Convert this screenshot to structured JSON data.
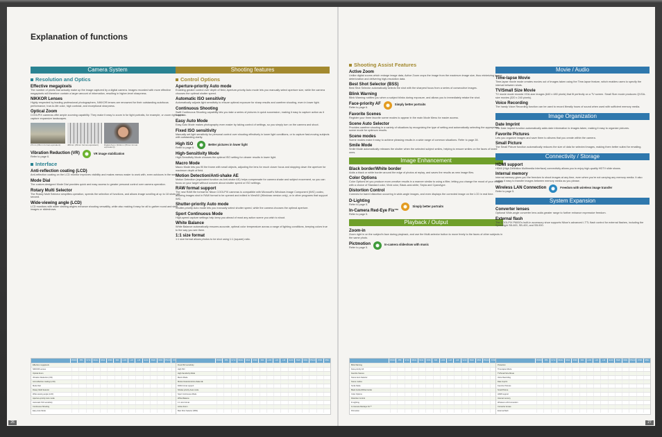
{
  "title": "Explanation of functions",
  "page_left": "26",
  "page_right": "27",
  "col1": {
    "band": "Camera System",
    "sub1": "Resolution and Optics",
    "h1": "Effective megapixels",
    "p1": "The number of pixels that actually make up the image captured by a digital camera. Images recorded with more effective megapixels will therefore contain a larger amount of information, resulting in higher-level sharpness.",
    "h2": "NIKKOR Lenses",
    "p2": "Highly respected by leading professional photographers, NIKKOR lenses are renowned for their outstanding autofocus performance, true-to-life color, high contrast, and exceptional sharpness.",
    "h3": "Optical Zoom",
    "p3": "COOLPIX cameras offer ample zooming capability. They make it easy to zoom in for tight portraits, for example, or zoom right out to capture expansive landscapes.",
    "cap1": "27mm (35mm format equivalent)",
    "cap2": "486mm (35mm format equivalent)",
    "cap3": "Digital Zoom (944mm (35mm format equivalent))",
    "h4": "Vibration Reduction (VR)",
    "p4": "Refer to page 6.",
    "badge1": "VR image stabilization",
    "sub2": "Interface",
    "h5": "Anti-reflection coating (LCD)",
    "p5": "Anti-reflection coating on the LCD monitor improves visibility and makes menus easier to work with, even outdoors in the sun.",
    "h6": "Mode Dial",
    "p6": "The custom-designed Mode Dial provides quick and easy access to greater personal control over camera operation.",
    "h7": "Rotary Multi Selector",
    "p7": "The Rotary Multi Selector simplifies operation, speeds the selection of functions, and allows image scrolling at up to 18 shots per second.",
    "h8": "Wide-viewing angle (LCD)",
    "p8": "LCD monitors with wider viewing angles enhance shooting versatility, while also making it easy for all to gather round and view images or slideshows."
  },
  "col2": {
    "band": "Shooting features",
    "sub1": "Control Options",
    "h1": "Aperture-priority Auto mode",
    "p1": "Enabling greater control over depth of field, Aperture-priority Auto mode lets you manually select aperture size, while the camera chooses the optimal shutter speed.",
    "h2": "Automatic ISO sensitivity",
    "p2": "Automatically adjusts light sensitivity to ensure optimal exposure for sharp results and carefree shooting, even in lower light.",
    "h3": "Continuous Shooting",
    "p3": "Swift Continuous Shooting capability lets you take a series of pictures in quick succession, making it easy to capture action as it happens.",
    "h4": "Easy Auto Mode",
    "p4": "Easy Auto Mode makes photography even easier by taking control of settings, so you simply turn on the camera and shoot.",
    "h5": "Fixed ISO sensitivity",
    "p5": "Manually set light sensitivity for personal control over shooting effectively in lower light conditions, or to capture fast-moving subjects with outstanding clarity.",
    "h6": "High ISO",
    "p6": "Refer to page 6.",
    "badge1": "Better pictures in lower light",
    "h7": "High-Sensitivity Mode",
    "p7": "High-Sensitivity Mode chooses the optimal ISO setting for clearer results in lower light.",
    "h8": "Macro Mode",
    "p8": "Macro Mode lets you fill the frame with small objects, adjusting the lens for much closer focus and stopping down the aperture for maximum depth of field.",
    "h9": "Motion Detection/Anti-shake AE",
    "p9": "Motion Detection (equivalent function as Anti-shake AE) helps compensate for camera shake and subject movement, so you can focus on your target without concern about shutter speed or ISO settings.",
    "h10": "RAW format support",
    "p10": "The new RAW file format for Nikon COOLPIX cameras is compatible with Microsoft's Windows Image Component (WIC) codec, allowing images shot in RAW format to be opened and edited in ViewNX (Windows version only), or in other programs that support WIC.",
    "h11": "Shutter-priority Auto mode",
    "p11": "Shutter-priority Auto mode lets you manually select shutter speed, while the camera chooses the optimal aperture.",
    "h12": "Sport Continuous Mode",
    "p12": "High-speed capture settings help keep you ahead of most any action scene you wish to shoot.",
    "h13": "White Balance",
    "p13": "White Balance automatically ensures accurate, optimal color temperature across a range of lighting conditions, keeping colors true to the way you see them.",
    "h14": "1:1 size format",
    "p14": "1:1 size format allows photos to be shot using 1:1 (square) ratio."
  },
  "col3": {
    "sub1": "Shooting Assist Features",
    "h1": "Active Zoom",
    "p1": "Unlike digital zooms which enlarge image data, Active Zoom crops the image from the maximum image size, thus minimizing image deterioration and delivering high-resolution data.",
    "h2": "Best Shot Selector (BSS)",
    "p2": "Best Shot Selector automatically selects the shot with the sharpest focus from a series of consecutive images.",
    "h3": "Blink Warning",
    "p3": "Blink Warning notifies you when a subject blinks during exposure, and allows you to immediately retake the shot.",
    "h4": "Face-priority AF",
    "p4": "Refer to page 6.",
    "badge1": "Simply better portraits",
    "h5": "Favorite Scenes",
    "p5": "Register your three favorite scene modes to appear in the main Mode Menu for easier access.",
    "h6": "Scene Auto Selector",
    "p6": "Provides carefree shooting in a variety of situations by recognizing the type of setting and automatically selecting the appropriate scene mode for optimum results.",
    "h7": "Scene modes",
    "p7": "Scene modes make it easy to achieve pleasing results in a wide range of common situations. Refer to page 28.",
    "h8": "Smile Mode",
    "p8": "Smile Mode automatically releases the shutter when the selected subject smiles, helping to ensure smiles on the faces of loved ones.",
    "band2": "Image Enhancement",
    "h9": "Black border/White border",
    "p9": "Adds a black or white border around the edge of photos at replay, and saves the results as new image files.",
    "h10": "Color Options",
    "p10": "Color Options let you produce more-creative results in a manner similar to using a filter, letting you change the mood of your images with a choice of Standard color, Vivid color, Black-and-white, Sepia and Cyanotype.",
    "h11": "Distortion Control",
    "p11": "Corrects for barrel distortion occurring in wide-angle images, and even displays the corrected image on the LCD in real time.",
    "h12": "D-Lighting",
    "p12": "Refer to page 5.",
    "h13": "In-Camera Red-Eye Fix™",
    "p13": "Refer to page 5.",
    "badge2": "Simply better portraits",
    "band3": "Playback / Output",
    "h14": "Zoom-in",
    "p14": "Zoom right in on the subject's face during playback, and use the Multi-selector button to move freely to the faces of other subjects in the same photo.",
    "h15": "Pictmotion",
    "p15": "Refer to page 5.",
    "badge3": "In-camera slideshow with music"
  },
  "col4": {
    "band1": "Movie / Audio",
    "h1": "Time-lapse Movie",
    "p1": "Time-lapse movie mode creates movies out of images taken using the Time-lapse feature, which enables users to specify the interval between shots.",
    "h2": "TV/Small Size Movie",
    "p2": "TV movie mode records VGA-size images (640 x 480 pixels) that fit perfectly on a TV screen. Small Size movie produces QVGA-size movies (320 x 240 pixels).",
    "h3": "Voice Recording",
    "p3": "The handy Voice Recording function can be used to record literally hours of sound when used with sufficient memory media.",
    "band2": "Image Organization",
    "h4": "Date Imprint",
    "p4": "The Date Imprint function automatically adds date information to images taken, making it easy to organize pictures.",
    "h5": "Favorite Pictures",
    "p5": "Lets you organize images and save them to albums that you create within the camera.",
    "h6": "Small Picture",
    "p6": "The Small Picture function automatically reduces the size of data for selected images, making them better suited for emailing.",
    "band3": "Connectivity / Storage",
    "h7": "HDMI support",
    "p7": "HDMI (High Definition Multimedia Interface) connectivity allows you to enjoy high-quality HDTV slide shows.",
    "h8": "Internal memory",
    "p8": "Internal memory gives you the freedom to shoot images at any time, even when you're not carrying any memory media. It also makes it easy to transfer images between memory media as you please.",
    "h9": "Wireless LAN Connection",
    "p9": "Refer to page 5.",
    "badge1": "Freedom with wireless image transfer",
    "band4": "System Expansion",
    "h10": "Converter lenses",
    "p10": "Optional Wide-angle converter lens adds greater range to further enhance expressive freedom.",
    "h11": "External flash",
    "p11": "The COOLPIX P6000's built-in accessory shoe supports Nikon's advanced i-TTL flash control for external flashes, including the Speedlight SB-600, SB-400, and SB-900."
  },
  "tables": {
    "models": [
      "P6000",
      "P80",
      "S710",
      "S610c",
      "S610",
      "S560",
      "S60",
      "L100",
      "L18",
      "L16",
      "S210",
      "S520",
      "S500",
      "P5100",
      "S700",
      "S50c"
    ],
    "t1": [
      "Effective megapixels",
      "NIKKOR Lenses",
      "Optical Zoom",
      "Vibration Reduction (VR)",
      "Anti-reflection coating (LCD)",
      "Mode Dial",
      "Rotary Multi Selector",
      "Wide-viewing angle (LCD)",
      "Aperture-priority Auto mode",
      "Automatic ISO sensitivity",
      "Continuous Shooting",
      "Easy Auto Mode"
    ],
    "t2": [
      "Fixed ISO sensitivity",
      "High ISO",
      "High-Sensitivity Mode",
      "Macro Mode",
      "Motion Detection/Anti-shake AE",
      "RAW format support",
      "Shutter-priority Auto mode",
      "Sport Continuous Mode",
      "White Balance",
      "1:1 size format",
      "Active Zoom",
      "Best Shot Selector (BSS)"
    ],
    "t3": [
      "Blink Warning",
      "Face-priority AF",
      "Favorite Scenes",
      "Scene Auto Selector",
      "Scene modes",
      "Smile Mode",
      "Black border/White border",
      "Color Options",
      "Distortion Control",
      "D-Lighting",
      "In-Camera Red-Eye Fix™",
      "Pictmotion"
    ],
    "t4": [
      "Protection",
      "Time-lapse Movie",
      "TV/Small Size Movie",
      "Voice Recording",
      "Date Imprint",
      "Favorite Pictures",
      "Small Picture",
      "HDMI support",
      "Internal memory",
      "Wireless LAN Connection",
      "Converter lenses",
      "External flash"
    ]
  }
}
